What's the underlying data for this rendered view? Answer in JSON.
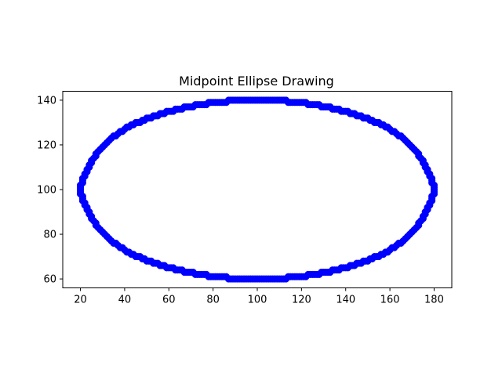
{
  "chart_data": {
    "type": "scatter",
    "title": "Midpoint Ellipse Drawing",
    "xlabel": "",
    "ylabel": "",
    "xlim": [
      12,
      188
    ],
    "ylim": [
      56,
      144
    ],
    "x_ticks": [
      20,
      40,
      60,
      80,
      100,
      120,
      140,
      160,
      180
    ],
    "y_ticks": [
      60,
      80,
      100,
      120,
      140
    ],
    "grid": false,
    "series": [
      {
        "marker_color": "#0000ff",
        "marker": "circle",
        "ellipse_center": [
          100,
          100
        ],
        "ellipse_radii": [
          80,
          40
        ],
        "points": [
          [
            100,
            140
          ],
          [
            101,
            140
          ],
          [
            102,
            140
          ],
          [
            103,
            140
          ],
          [
            104,
            140
          ],
          [
            105,
            140
          ],
          [
            106,
            140
          ],
          [
            107,
            140
          ],
          [
            108,
            140
          ],
          [
            109,
            140
          ],
          [
            110,
            140
          ],
          [
            111,
            140
          ],
          [
            112,
            140
          ],
          [
            113,
            140
          ],
          [
            114,
            139
          ],
          [
            115,
            139
          ],
          [
            116,
            139
          ],
          [
            117,
            139
          ],
          [
            118,
            139
          ],
          [
            119,
            139
          ],
          [
            120,
            139
          ],
          [
            121,
            139
          ],
          [
            122,
            139
          ],
          [
            123,
            138
          ],
          [
            124,
            138
          ],
          [
            125,
            138
          ],
          [
            126,
            138
          ],
          [
            127,
            138
          ],
          [
            128,
            138
          ],
          [
            129,
            137
          ],
          [
            130,
            137
          ],
          [
            131,
            137
          ],
          [
            132,
            137
          ],
          [
            133,
            137
          ],
          [
            134,
            136
          ],
          [
            135,
            136
          ],
          [
            136,
            136
          ],
          [
            137,
            136
          ],
          [
            138,
            135
          ],
          [
            139,
            135
          ],
          [
            140,
            135
          ],
          [
            141,
            135
          ],
          [
            142,
            134
          ],
          [
            143,
            134
          ],
          [
            144,
            134
          ],
          [
            145,
            133
          ],
          [
            146,
            133
          ],
          [
            147,
            133
          ],
          [
            148,
            132
          ],
          [
            149,
            132
          ],
          [
            150,
            132
          ],
          [
            151,
            131
          ],
          [
            152,
            131
          ],
          [
            153,
            130
          ],
          [
            154,
            130
          ],
          [
            155,
            130
          ],
          [
            156,
            129
          ],
          [
            157,
            129
          ],
          [
            158,
            128
          ],
          [
            159,
            128
          ],
          [
            160,
            127
          ],
          [
            161,
            126
          ],
          [
            162,
            126
          ],
          [
            163,
            125
          ],
          [
            164,
            124
          ],
          [
            165,
            124
          ],
          [
            166,
            123
          ],
          [
            167,
            122
          ],
          [
            168,
            121
          ],
          [
            169,
            120
          ],
          [
            170,
            119
          ],
          [
            171,
            118
          ],
          [
            172,
            117
          ],
          [
            173,
            116
          ],
          [
            173,
            115
          ],
          [
            174,
            114
          ],
          [
            175,
            113
          ],
          [
            175,
            112
          ],
          [
            176,
            111
          ],
          [
            176,
            110
          ],
          [
            177,
            109
          ],
          [
            177,
            108
          ],
          [
            178,
            107
          ],
          [
            178,
            106
          ],
          [
            179,
            105
          ],
          [
            179,
            104
          ],
          [
            179,
            103
          ],
          [
            180,
            102
          ],
          [
            180,
            101
          ],
          [
            180,
            100
          ]
        ]
      }
    ]
  }
}
